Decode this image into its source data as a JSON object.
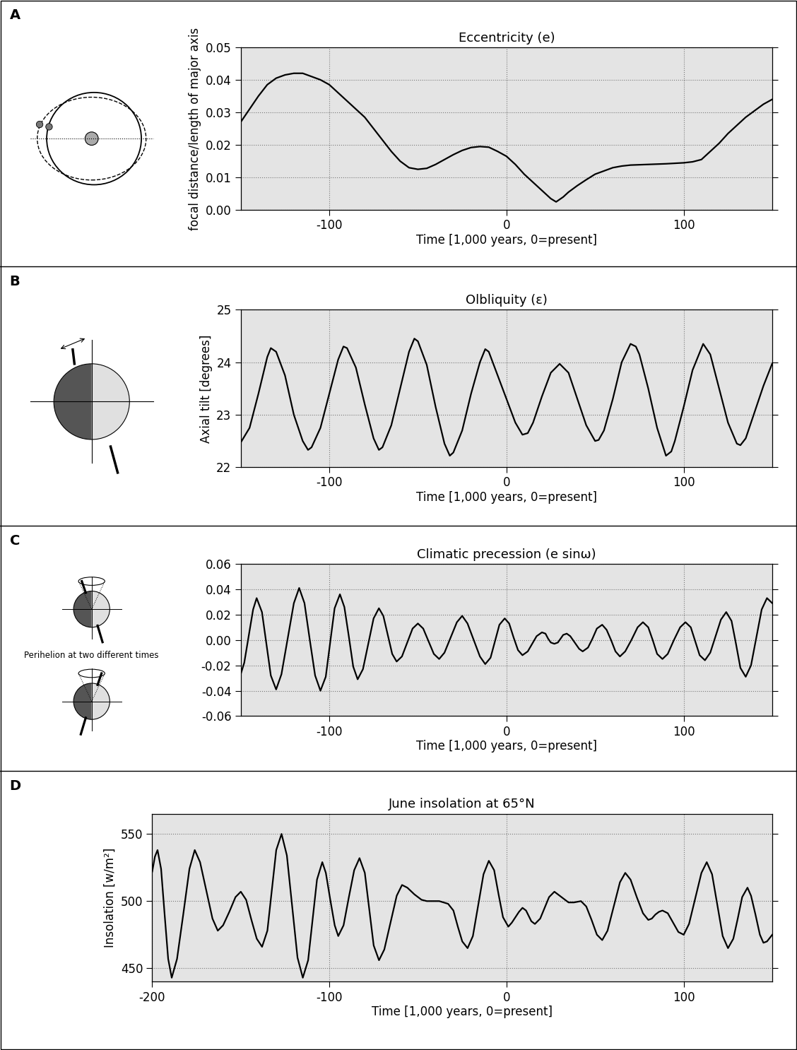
{
  "chart_data": [
    {
      "type": "line",
      "title": "Eccentricity (e)",
      "annotations": [
        "A"
      ],
      "x_label": "Time [1,000 years, 0=present]",
      "y_label": "focal distance/length of major axis",
      "xlim": [
        -150,
        150
      ],
      "xticks": [
        -100,
        0,
        100
      ],
      "ylim": [
        0.0,
        0.05
      ],
      "yticks": [
        {
          "value": 0.0,
          "label": "0.00"
        },
        {
          "value": 0.01,
          "label": "0.01"
        },
        {
          "value": 0.02,
          "label": "0.02"
        },
        {
          "value": 0.03,
          "label": "0.03"
        },
        {
          "value": 0.04,
          "label": "0.04"
        },
        {
          "value": 0.05,
          "label": "0.05"
        }
      ],
      "grid": true,
      "color": "#000000",
      "x": [
        -150,
        -145,
        -140,
        -135,
        -130,
        -125,
        -120,
        -115,
        -110,
        -105,
        -100,
        -95,
        -90,
        -85,
        -80,
        -75,
        -70,
        -65,
        -60,
        -55,
        -50,
        -45,
        -40,
        -35,
        -30,
        -25,
        -20,
        -15,
        -10,
        -5,
        0,
        5,
        10,
        15,
        20,
        25,
        28,
        32,
        35,
        40,
        45,
        50,
        55,
        60,
        65,
        70,
        80,
        90,
        100,
        105,
        110,
        115,
        120,
        125,
        130,
        135,
        140,
        145,
        150
      ],
      "values": [
        0.027,
        0.031,
        0.035,
        0.0385,
        0.0405,
        0.0415,
        0.042,
        0.042,
        0.041,
        0.04,
        0.0385,
        0.036,
        0.0335,
        0.031,
        0.0285,
        0.025,
        0.0215,
        0.018,
        0.015,
        0.013,
        0.0125,
        0.0128,
        0.014,
        0.0155,
        0.017,
        0.0183,
        0.0192,
        0.0195,
        0.0193,
        0.018,
        0.0165,
        0.014,
        0.011,
        0.0085,
        0.006,
        0.0035,
        0.0025,
        0.004,
        0.0055,
        0.0075,
        0.0093,
        0.011,
        0.012,
        0.013,
        0.0135,
        0.0138,
        0.014,
        0.0142,
        0.0145,
        0.0148,
        0.0155,
        0.018,
        0.0205,
        0.0235,
        0.026,
        0.0285,
        0.0305,
        0.0325,
        0.034
      ]
    },
    {
      "type": "line",
      "title": "Olbliquity (ε)",
      "annotations": [
        "B"
      ],
      "x_label": "Time [1,000 years, 0=present]",
      "y_label": "Axial tilt [degrees]",
      "xlim": [
        -150,
        150
      ],
      "xticks": [
        -100,
        0,
        100
      ],
      "ylim": [
        22,
        25
      ],
      "yticks": [
        22,
        23,
        24,
        25
      ],
      "grid": true,
      "color": "#000000",
      "x": [
        -150,
        -145,
        -140,
        -135,
        -133,
        -130,
        -125,
        -120,
        -115,
        -112,
        -110,
        -105,
        -100,
        -95,
        -92,
        -90,
        -85,
        -80,
        -75,
        -72,
        -70,
        -65,
        -60,
        -55,
        -52,
        -50,
        -45,
        -40,
        -35,
        -32,
        -30,
        -25,
        -20,
        -15,
        -12,
        -10,
        -5,
        0,
        5,
        9,
        12,
        15,
        20,
        25,
        30,
        35,
        40,
        45,
        50,
        52,
        55,
        60,
        65,
        70,
        73,
        75,
        80,
        85,
        90,
        93,
        95,
        100,
        105,
        111,
        115,
        120,
        125,
        130,
        132,
        135,
        140,
        145,
        150
      ],
      "values": [
        22.47,
        22.75,
        23.4,
        24.1,
        24.27,
        24.2,
        23.75,
        23.0,
        22.5,
        22.33,
        22.38,
        22.75,
        23.4,
        24.05,
        24.3,
        24.27,
        23.9,
        23.2,
        22.55,
        22.33,
        22.38,
        22.8,
        23.5,
        24.2,
        24.45,
        24.4,
        23.95,
        23.15,
        22.45,
        22.22,
        22.28,
        22.7,
        23.4,
        24.0,
        24.25,
        24.2,
        23.75,
        23.3,
        22.85,
        22.62,
        22.65,
        22.85,
        23.35,
        23.8,
        23.97,
        23.8,
        23.3,
        22.8,
        22.5,
        22.52,
        22.7,
        23.3,
        24.0,
        24.35,
        24.3,
        24.15,
        23.5,
        22.75,
        22.22,
        22.3,
        22.5,
        23.15,
        23.85,
        24.35,
        24.15,
        23.5,
        22.85,
        22.45,
        22.42,
        22.55,
        23.05,
        23.55,
        23.98
      ]
    },
    {
      "type": "line",
      "title": "Climatic precession (e sinω)",
      "annotations": [
        "C",
        "Perihelion at two different times"
      ],
      "x_label": "Time [1,000 years, 0=present]",
      "xlim": [
        -150,
        150
      ],
      "xticks": [
        -100,
        0,
        100
      ],
      "ylim": [
        -0.06,
        0.06
      ],
      "yticks": [
        {
          "value": -0.06,
          "label": "-0.06"
        },
        {
          "value": -0.04,
          "label": "-0.04"
        },
        {
          "value": -0.02,
          "label": "-0.02"
        },
        {
          "value": 0.0,
          "label": "0.00"
        },
        {
          "value": 0.02,
          "label": "0.02"
        },
        {
          "value": 0.04,
          "label": "0.04"
        },
        {
          "value": 0.06,
          "label": "0.06"
        }
      ],
      "grid": true,
      "color": "#000000",
      "x": [
        -150,
        -148,
        -145.5,
        -143,
        -141,
        -138,
        -135.5,
        -133,
        -130,
        -127,
        -123.5,
        -120,
        -117,
        -114,
        -111,
        -108,
        -105,
        -102,
        -99.5,
        -97,
        -94,
        -91.5,
        -89,
        -86.5,
        -84,
        -81,
        -78,
        -75,
        -72,
        -69.5,
        -67,
        -64.5,
        -62,
        -59,
        -56,
        -53,
        -50,
        -47,
        -44,
        -41,
        -38,
        -35,
        -31.5,
        -28,
        -25,
        -22,
        -18.5,
        -15,
        -12,
        -9,
        -6.5,
        -4,
        -1,
        1.5,
        4,
        6.5,
        9,
        12,
        14.5,
        17,
        20,
        22,
        23.5,
        25,
        27,
        29,
        30.5,
        32,
        34,
        36,
        38.5,
        41,
        43,
        46,
        48.5,
        51,
        54,
        56.5,
        59,
        61.5,
        64,
        67,
        70.5,
        74,
        77,
        80,
        82.5,
        85,
        88,
        91,
        94.5,
        98,
        101,
        104,
        106.5,
        109,
        112,
        115,
        118,
        121,
        124,
        127,
        129.5,
        132,
        135,
        138,
        141,
        144,
        147,
        150
      ],
      "values": [
        -0.027,
        -0.018,
        0.003,
        0.024,
        0.033,
        0.022,
        -0.003,
        -0.028,
        -0.039,
        -0.027,
        0.001,
        0.029,
        0.041,
        0.029,
        0.0,
        -0.028,
        -0.04,
        -0.029,
        -0.002,
        0.025,
        0.036,
        0.026,
        0.003,
        -0.021,
        -0.031,
        -0.023,
        -0.003,
        0.017,
        0.025,
        0.019,
        0.004,
        -0.011,
        -0.017,
        -0.013,
        -0.002,
        0.009,
        0.013,
        0.009,
        -0.001,
        -0.011,
        -0.015,
        -0.01,
        0.002,
        0.014,
        0.019,
        0.013,
        0.0,
        -0.013,
        -0.019,
        -0.014,
        -0.001,
        0.012,
        0.017,
        0.013,
        0.002,
        -0.008,
        -0.012,
        -0.009,
        -0.003,
        0.003,
        0.006,
        0.005,
        0.001,
        -0.002,
        -0.003,
        -0.002,
        0.001,
        0.004,
        0.005,
        0.003,
        -0.002,
        -0.007,
        -0.009,
        -0.006,
        0.001,
        0.009,
        0.012,
        0.008,
        0.0,
        -0.009,
        -0.013,
        -0.009,
        0.0,
        0.01,
        0.014,
        0.01,
        0.0,
        -0.011,
        -0.015,
        -0.011,
        0.0,
        0.01,
        0.014,
        0.01,
        -0.001,
        -0.012,
        -0.016,
        -0.01,
        0.003,
        0.016,
        0.022,
        0.015,
        -0.003,
        -0.022,
        -0.029,
        -0.02,
        0.002,
        0.024,
        0.033,
        0.029
      ]
    },
    {
      "type": "line",
      "title": "June insolation at 65°N",
      "annotations": [
        "D"
      ],
      "x_label": "Time [1,000 years, 0=present]",
      "y_label": "Insolation [w/m²]",
      "xlim": [
        -200,
        150
      ],
      "xticks": [
        -200,
        -100,
        0,
        100
      ],
      "ylim": [
        440,
        565
      ],
      "yticks": [
        450,
        500,
        550
      ],
      "grid": true,
      "color": "#000000",
      "x": [
        -200,
        -198.5,
        -197,
        -195,
        -193,
        -191,
        -189,
        -186,
        -182.5,
        -179,
        -176,
        -173,
        -169.5,
        -166,
        -163,
        -160,
        -156.5,
        -153,
        -150,
        -147,
        -144,
        -141,
        -138,
        -135,
        -132.5,
        -130,
        -127,
        -124,
        -121,
        -118,
        -115,
        -112,
        -109.5,
        -107,
        -104,
        -102,
        -99.5,
        -97,
        -95,
        -92,
        -89,
        -86,
        -83,
        -80,
        -77.5,
        -75,
        -72,
        -69,
        -65.5,
        -62,
        -59,
        -56,
        -52,
        -48,
        -45,
        -38,
        -33,
        -30,
        -27.5,
        -25,
        -22,
        -19,
        -16,
        -13,
        -10,
        -7,
        -4.5,
        -2,
        1,
        3,
        5,
        7,
        9,
        11,
        12.5,
        14,
        16,
        19,
        21.5,
        24,
        27,
        31,
        35,
        38,
        42,
        45,
        48,
        51,
        54,
        57,
        60.5,
        64,
        67,
        70,
        73.5,
        77,
        80,
        82,
        84,
        86,
        88,
        91,
        94,
        97,
        100,
        103,
        106.5,
        110,
        113,
        116,
        119,
        122,
        125,
        128,
        130.5,
        133,
        136,
        138,
        140.5,
        143,
        145,
        147,
        150
      ],
      "values": [
        522,
        533,
        538,
        524,
        490,
        457,
        443,
        457,
        490,
        524,
        538,
        529,
        508,
        487,
        478,
        482,
        492,
        503,
        507,
        501,
        486,
        472,
        466,
        478,
        508,
        538,
        550,
        534,
        496,
        458,
        443,
        456,
        486,
        516,
        529,
        521,
        501,
        482,
        474,
        482,
        503,
        523,
        532,
        521,
        494,
        467,
        456,
        464,
        484,
        504,
        512,
        510,
        505,
        501,
        500,
        500,
        498,
        493,
        481,
        470,
        465,
        474,
        497,
        520,
        530,
        523,
        505,
        488,
        481,
        484,
        488,
        492,
        495,
        493,
        489,
        485,
        483,
        487,
        495,
        503,
        507,
        503,
        499,
        499,
        500,
        496,
        486,
        475,
        471,
        478,
        496,
        514,
        521,
        516,
        503,
        491,
        486,
        487,
        490,
        492,
        493,
        491,
        484,
        477,
        475,
        483,
        502,
        521,
        529,
        520,
        497,
        474,
        465,
        472,
        487,
        503,
        510,
        504,
        490,
        475,
        469,
        470,
        475
      ]
    }
  ]
}
